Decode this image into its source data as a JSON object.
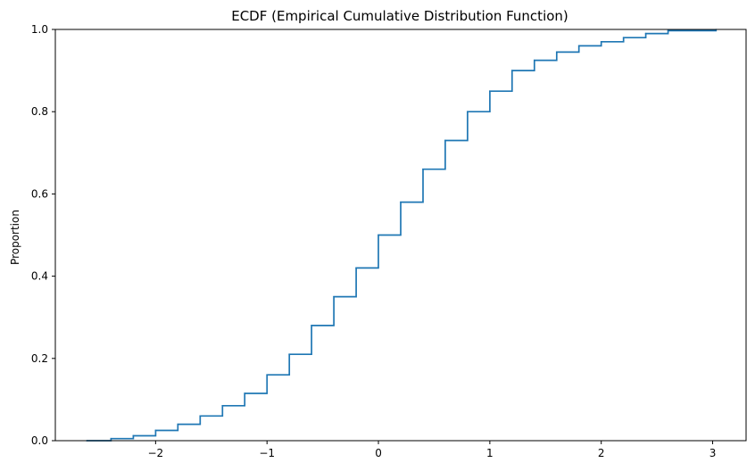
{
  "chart_data": {
    "type": "line",
    "title": "ECDF (Empirical Cumulative Distribution Function)",
    "xlabel": "",
    "ylabel": "Proportion",
    "xlim": [
      -2.9,
      3.3
    ],
    "ylim": [
      0.0,
      1.0
    ],
    "x_ticks": [
      -2,
      -1,
      0,
      1,
      2,
      3
    ],
    "x_tick_labels": [
      "−2",
      "−1",
      "0",
      "1",
      "2",
      "3"
    ],
    "y_ticks": [
      0.0,
      0.2,
      0.4,
      0.6,
      0.8,
      1.0
    ],
    "y_tick_labels": [
      "0.0",
      "0.2",
      "0.4",
      "0.6",
      "0.8",
      "1.0"
    ],
    "grid": false,
    "legend": "none",
    "color": "#1f77b4",
    "series": [
      {
        "x": [
          -2.62,
          -2.4,
          -2.2,
          -2.0,
          -1.8,
          -1.6,
          -1.4,
          -1.2,
          -1.0,
          -0.8,
          -0.6,
          -0.4,
          -0.2,
          0.0,
          0.2,
          0.4,
          0.6,
          0.8,
          1.0,
          1.2,
          1.4,
          1.6,
          1.8,
          2.0,
          2.2,
          2.4,
          2.6,
          3.03
        ],
        "y": [
          0.0,
          0.005,
          0.012,
          0.025,
          0.04,
          0.06,
          0.085,
          0.115,
          0.16,
          0.21,
          0.28,
          0.35,
          0.42,
          0.5,
          0.58,
          0.66,
          0.73,
          0.8,
          0.85,
          0.9,
          0.925,
          0.945,
          0.96,
          0.97,
          0.98,
          0.99,
          0.997,
          1.0
        ]
      }
    ]
  }
}
